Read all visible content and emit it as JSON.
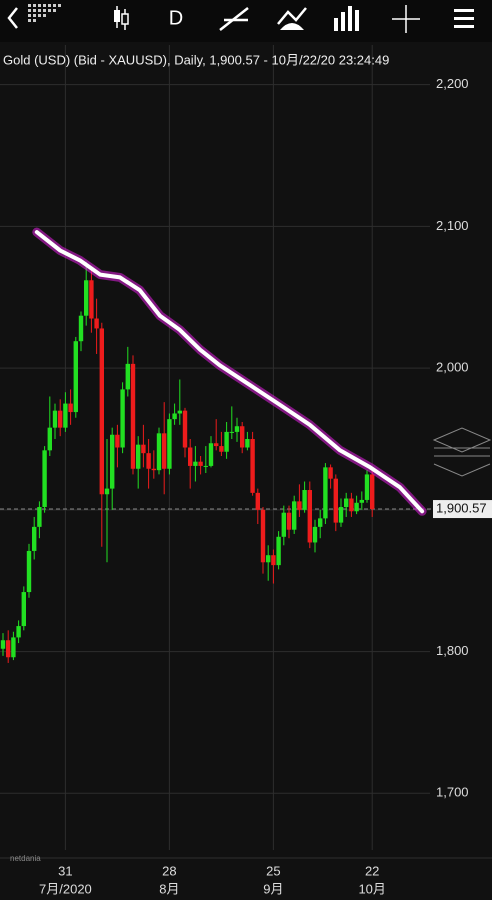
{
  "chart_data": {
    "type": "candlestick",
    "title": "Gold (USD) (Bid - XAUUSD),  Daily, 1,900.57 - 10月/22/20 23:24:49",
    "interval": "D",
    "watermark": "netdania",
    "categories": [
      null,
      null,
      null,
      null,
      null,
      null,
      null,
      null,
      null,
      null,
      null,
      null,
      "31",
      null,
      null,
      null,
      null,
      null,
      null,
      null,
      null,
      null,
      null,
      null,
      null,
      null,
      null,
      null,
      null,
      null,
      null,
      null,
      "28",
      null,
      null,
      null,
      null,
      null,
      null,
      null,
      null,
      null,
      null,
      null,
      null,
      null,
      null,
      null,
      null,
      null,
      null,
      null,
      "25",
      null,
      null,
      null,
      null,
      null,
      null,
      null,
      null,
      null,
      null,
      null,
      null,
      null,
      null,
      null,
      null,
      null,
      null,
      "22"
    ],
    "category_months": [
      null,
      null,
      null,
      null,
      null,
      null,
      null,
      null,
      null,
      null,
      null,
      null,
      "7月/2020",
      null,
      null,
      null,
      null,
      null,
      null,
      null,
      null,
      null,
      null,
      null,
      null,
      null,
      null,
      null,
      null,
      null,
      null,
      null,
      "8月",
      null,
      null,
      null,
      null,
      null,
      null,
      null,
      null,
      null,
      null,
      null,
      null,
      null,
      null,
      null,
      null,
      null,
      null,
      null,
      "9月",
      null,
      null,
      null,
      null,
      null,
      null,
      null,
      null,
      null,
      null,
      null,
      null,
      null,
      null,
      null,
      null,
      null,
      null,
      "10月"
    ],
    "open": [
      1802,
      1808,
      1796,
      1810,
      1818,
      1842,
      1871,
      1888,
      1902,
      1942,
      1958,
      1970,
      1958,
      1975,
      1969,
      2019,
      2037,
      2062,
      2035,
      2028,
      1911,
      1915,
      1953,
      1944,
      1985,
      2003,
      1929,
      1946,
      1940,
      1929,
      1928,
      1954,
      1929,
      1964,
      1968,
      1970,
      1944,
      1931,
      1934,
      1931,
      1931,
      1947,
      1945,
      1941,
      1955,
      1955,
      1959,
      1944,
      1950,
      1912,
      1900,
      1863,
      1868,
      1861,
      1881,
      1898,
      1886,
      1906,
      1900,
      1914,
      1877,
      1888,
      1894,
      1930,
      1922,
      1891,
      1902,
      1908,
      1899,
      1905,
      1907,
      1925
    ],
    "high": [
      1813,
      1815,
      1814,
      1822,
      1846,
      1876,
      1895,
      1906,
      1945,
      1980,
      1975,
      1978,
      1983,
      1985,
      2022,
      2040,
      2075,
      2070,
      2049,
      2032,
      1950,
      1958,
      1960,
      1990,
      2015,
      2009,
      1952,
      1960,
      1950,
      1942,
      1958,
      1976,
      1968,
      1975,
      1992,
      1972,
      1950,
      1945,
      1938,
      1945,
      1952,
      1964,
      1955,
      1962,
      1973,
      1965,
      1962,
      1955,
      1955,
      1915,
      1902,
      1875,
      1872,
      1885,
      1903,
      1903,
      1910,
      1918,
      1920,
      1920,
      1893,
      1900,
      1933,
      1932,
      1925,
      1908,
      1912,
      1912,
      1910,
      1913,
      1928,
      1930
    ],
    "low": [
      1797,
      1792,
      1794,
      1806,
      1815,
      1838,
      1865,
      1880,
      1898,
      1938,
      1950,
      1952,
      1955,
      1960,
      1965,
      2012,
      2030,
      2025,
      2010,
      1874,
      1863,
      1900,
      1930,
      1940,
      1980,
      1925,
      1915,
      1930,
      1915,
      1922,
      1925,
      1911,
      1925,
      1960,
      1960,
      1937,
      1915,
      1920,
      1925,
      1926,
      1930,
      1942,
      1938,
      1936,
      1950,
      1948,
      1940,
      1942,
      1910,
      1890,
      1855,
      1850,
      1848,
      1858,
      1875,
      1880,
      1883,
      1895,
      1898,
      1873,
      1870,
      1880,
      1890,
      1915,
      1885,
      1888,
      1895,
      1895,
      1897,
      1900,
      1905,
      1895
    ],
    "close": [
      1808,
      1796,
      1810,
      1818,
      1842,
      1871,
      1888,
      1902,
      1942,
      1958,
      1970,
      1958,
      1975,
      1969,
      2019,
      2037,
      2062,
      2035,
      2028,
      1911,
      1915,
      1953,
      1944,
      1985,
      2003,
      1929,
      1946,
      1940,
      1929,
      1928,
      1954,
      1929,
      1964,
      1968,
      1970,
      1944,
      1931,
      1934,
      1931,
      1931,
      1947,
      1945,
      1941,
      1955,
      1955,
      1959,
      1944,
      1950,
      1912,
      1900,
      1863,
      1868,
      1861,
      1881,
      1898,
      1886,
      1906,
      1900,
      1914,
      1877,
      1888,
      1894,
      1930,
      1922,
      1891,
      1902,
      1908,
      1899,
      1905,
      1907,
      1925,
      1900.57
    ],
    "up_color": "#22e022",
    "down_color": "#ee1c1c",
    "ylim": [
      1660,
      2228
    ],
    "yticks": [
      {
        "value": 1700,
        "label": "1,700"
      },
      {
        "value": 1800,
        "label": "1,800"
      },
      {
        "value": 1900,
        "label": "1,900"
      },
      {
        "value": 2000,
        "label": "2,000"
      },
      {
        "value": 2100,
        "label": "2,100"
      },
      {
        "value": 2200,
        "label": "2,200"
      }
    ],
    "grid": true,
    "last_price": {
      "value": 1900.57,
      "label": "1,900.57"
    },
    "trendline": {
      "color": "#ffffff",
      "glow": "#e020e0",
      "x": [
        6.5,
        11,
        14.8,
        18.7,
        22.5,
        26.3,
        30.2,
        34,
        37.9,
        41.7,
        47.5,
        53.3,
        59,
        64.8,
        70.6,
        76.3,
        80.6
      ],
      "y": [
        2096,
        2083,
        2076,
        2066,
        2064,
        2055,
        2037,
        2027,
        2013,
        2002,
        1988,
        1974,
        1960,
        1942,
        1930,
        1916,
        1899
      ]
    }
  }
}
